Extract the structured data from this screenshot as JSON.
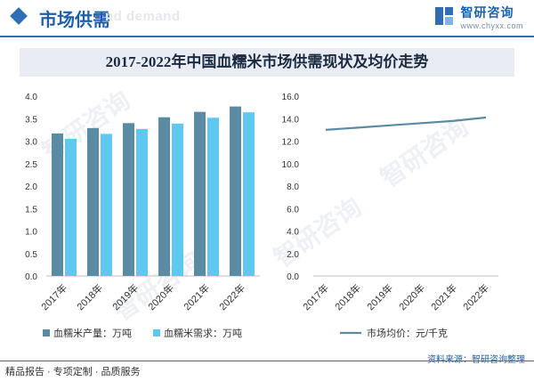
{
  "header": {
    "section_title": "市场供需",
    "ghost_text": "nd demand",
    "brand_name": "智研咨询",
    "brand_url": "www.chyxx.com"
  },
  "title": "2017-2022年中国血糯米市场供需现状及均价走势",
  "colors": {
    "brand": "#2f6db5",
    "production": "#5b8ba3",
    "demand": "#5fc8ee",
    "price": "#5b8ba3"
  },
  "chart_data": [
    {
      "type": "bar",
      "categories": [
        "2017年",
        "2018年",
        "2019年",
        "2020年",
        "2021年",
        "2022年"
      ],
      "series": [
        {
          "name": "血糯米产量：万吨",
          "values": [
            3.17,
            3.29,
            3.4,
            3.53,
            3.65,
            3.77
          ]
        },
        {
          "name": "血糯米需求：万吨",
          "values": [
            3.05,
            3.16,
            3.27,
            3.39,
            3.52,
            3.64
          ]
        }
      ],
      "yticks": [
        "0.0",
        "0.5",
        "1.0",
        "1.5",
        "2.0",
        "2.5",
        "3.0",
        "3.5",
        "4.0"
      ],
      "ylim": [
        0,
        4.0
      ],
      "grid": false,
      "legend": "bottom"
    },
    {
      "type": "line",
      "categories": [
        "2017年",
        "2018年",
        "2019年",
        "2020年",
        "2021年",
        "2022年"
      ],
      "series": [
        {
          "name": "市场均价：元/千克",
          "values": [
            13.0,
            13.2,
            13.4,
            13.6,
            13.8,
            14.1
          ]
        }
      ],
      "yticks": [
        "0.0",
        "2.0",
        "4.0",
        "6.0",
        "8.0",
        "10.0",
        "12.0",
        "14.0",
        "16.0"
      ],
      "ylim": [
        0,
        16.0
      ],
      "grid": false,
      "legend": "bottom"
    }
  ],
  "footer": {
    "tagline": "精品报告 · 专项定制 · 品质服务",
    "source": "资料来源：智研咨询整理"
  },
  "watermark": "智研咨询"
}
